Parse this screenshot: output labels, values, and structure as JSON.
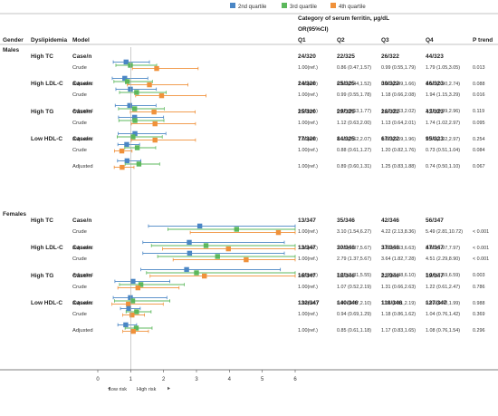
{
  "legend": [
    {
      "label": "2nd quartile",
      "color": "#4a86c5"
    },
    {
      "label": "3rd quartile",
      "color": "#5cb85c"
    },
    {
      "label": "4th quartile",
      "color": "#f0913a"
    }
  ],
  "header": {
    "gender": "Gender",
    "dyslipidemia": "Dyslipidemia",
    "model": "Model",
    "category_line1": "Category of  serum ferritin,  μg/dL",
    "category_line2": "OR(95%CI)",
    "q1": "Q1",
    "q2": "Q2",
    "q3": "Q3",
    "q4": "Q4",
    "ptrend": "P trend"
  },
  "x_axis": {
    "ticks": [
      "0",
      "1",
      "2",
      "3",
      "4",
      "5",
      "6"
    ],
    "low_risk": "Low risk",
    "high_risk": "High risk"
  },
  "chart_data": {
    "type": "forest",
    "xlim": [
      0,
      6
    ],
    "reference_line": 1,
    "series": [
      {
        "name": "2nd quartile",
        "color": "#4a86c5"
      },
      {
        "name": "3rd quartile",
        "color": "#5cb85c"
      },
      {
        "name": "4th quartile",
        "color": "#f0913a"
      }
    ],
    "groups": [
      {
        "gender": "Males",
        "dyslipidemia": "High TC",
        "casen": {
          "label": "Case/n",
          "q1": "24/320",
          "q2": "22/325",
          "q3": "26/322",
          "q4": "44/323"
        },
        "models": [
          {
            "label": "Crude",
            "q1": "1.00(ref.)",
            "q2": "0.86 (0.47,1.57)",
            "q3": "0.99 (0.55,1.79)",
            "q4": "1.79 (1.05,3.05)",
            "p": "0.013",
            "est": [
              [
                0.86,
                0.47,
                1.57
              ],
              [
                0.99,
                0.55,
                1.79
              ],
              [
                1.79,
                1.05,
                3.05
              ]
            ]
          },
          {
            "label": "Adjusted",
            "q1": "1.00(ref.)",
            "q2": "0.82 (0.44,1.52)",
            "q3": "0.90 (0.49,1.66)",
            "q4": "1.57 (0.90,2.74)",
            "p": "0.088",
            "est": [
              [
                0.82,
                0.44,
                1.52
              ],
              [
                0.9,
                0.49,
                1.66
              ],
              [
                1.57,
                0.9,
                2.74
              ]
            ]
          }
        ]
      },
      {
        "gender": "",
        "dyslipidemia": "High LDL-C",
        "casen": {
          "label": "Case/n",
          "q1": "24/320",
          "q2": "25/325",
          "q3": "30/322",
          "q4": "46/323"
        },
        "models": [
          {
            "label": "Crude",
            "q1": "1.00(ref.)",
            "q2": "0.99 (0.55,1.78)",
            "q3": "1.18 (0.66,2.08)",
            "q4": "1.94 (1.15,3.29)",
            "p": "0.016",
            "est": [
              [
                0.99,
                0.55,
                1.78
              ],
              [
                1.18,
                0.66,
                2.08
              ],
              [
                1.94,
                1.15,
                3.29
              ]
            ]
          },
          {
            "label": "Adjusted",
            "q1": "1.00(ref.)",
            "q2": "0.97 (0.53,1.77)",
            "q3": "1.12 (0.63,2.02)",
            "q4": "1.71 (0.99,2.96)",
            "p": "0.119",
            "est": [
              [
                0.97,
                0.53,
                1.77
              ],
              [
                1.12,
                0.63,
                2.02
              ],
              [
                1.71,
                0.99,
                2.96
              ]
            ]
          }
        ]
      },
      {
        "gender": "",
        "dyslipidemia": "High TG",
        "casen": {
          "label": "Case/n",
          "q1": "25/320",
          "q2": "29/325",
          "q3": "28/322",
          "q4": "43/323"
        },
        "models": [
          {
            "label": "Crude",
            "q1": "1.00(ref.)",
            "q2": "1.12 (0.63,2.00)",
            "q3": "1.13 (0.64,2.01)",
            "q4": "1.74 (1.02,2.97)",
            "p": "0.095",
            "est": [
              [
                1.12,
                0.63,
                2.0
              ],
              [
                1.13,
                0.64,
                2.01
              ],
              [
                1.74,
                1.02,
                2.97
              ]
            ]
          },
          {
            "label": "Adjusted",
            "q1": "1.00(ref.)",
            "q2": "1.13 (0.62,2.07)",
            "q3": "1.07 (0.59,1.96)",
            "q4": "1.74 (1.02,2.97)",
            "p": "0.254",
            "est": [
              [
                1.13,
                0.62,
                2.07
              ],
              [
                1.07,
                0.59,
                1.96
              ],
              [
                1.74,
                1.02,
                2.97
              ]
            ]
          }
        ]
      },
      {
        "gender": "",
        "dyslipidemia": "Low HDL-C",
        "casen": {
          "label": "Case/n",
          "q1": "77/320",
          "q2": "84/325",
          "q3": "67/322",
          "q4": "95/323"
        },
        "models": [
          {
            "label": "Crude",
            "q1": "1.00(ref.)",
            "q2": "0.88 (0.61,1.27)",
            "q3": "1.20 (0.82,1.76)",
            "q4": "0.73 (0.51,1.04)",
            "p": "0.084",
            "est": [
              [
                0.88,
                0.61,
                1.27
              ],
              [
                1.2,
                0.82,
                1.76
              ],
              [
                0.73,
                0.51,
                1.04
              ]
            ]
          },
          {
            "label": "Adjusted",
            "q1": "1.00(ref.)",
            "q2": "0.89 (0.60,1.31)",
            "q3": "1.25 (0.83,1.88)",
            "q4": "0.74 (0.50,1.10)",
            "p": "0.067",
            "est": [
              [
                0.89,
                0.6,
                1.31
              ],
              [
                1.25,
                0.83,
                1.88
              ],
              [
                0.74,
                0.5,
                1.1
              ]
            ]
          }
        ]
      },
      {
        "gender": "Females",
        "dyslipidemia": "High TC",
        "casen": {
          "label": "Case/n",
          "q1": "13/347",
          "q2": "35/346",
          "q3": "42/346",
          "q4": "56/347"
        },
        "models": [
          {
            "label": "Crude",
            "q1": "1.00(ref.)",
            "q2": "3.10 (1.54,6.27)",
            "q3": "4.22 (2.13,8.36)",
            "q4": "5.49 (2.81,10.72)",
            "p": "< 0.001",
            "est": [
              [
                3.1,
                1.54,
                6.27
              ],
              [
                4.22,
                2.13,
                8.36
              ],
              [
                5.49,
                2.81,
                10.72
              ]
            ]
          },
          {
            "label": "Adjusted",
            "q1": "1.00(ref.)",
            "q2": "2.78 (1.37,5.67)",
            "q3": "3.29 (1.63,6.63)",
            "q4": "3.97 (1.97,7.97)",
            "p": "< 0.001",
            "est": [
              [
                2.78,
                1.37,
                5.67
              ],
              [
                3.29,
                1.63,
                6.63
              ],
              [
                3.97,
                1.97,
                7.97
              ]
            ]
          }
        ]
      },
      {
        "gender": "",
        "dyslipidemia": "High LDL-C",
        "casen": {
          "label": "Case/n",
          "q1": "13/347",
          "q2": "30/346",
          "q3": "37/346",
          "q4": "47/347"
        },
        "models": [
          {
            "label": "Crude",
            "q1": "1.00(ref.)",
            "q2": "2.79 (1.37,5.67)",
            "q3": "3.64 (1.82,7.28)",
            "q4": "4.51 (2.29,8.90)",
            "p": "< 0.001",
            "est": [
              [
                2.79,
                1.37,
                5.67
              ],
              [
                3.64,
                1.82,
                7.28
              ],
              [
                4.51,
                2.29,
                8.9
              ]
            ]
          },
          {
            "label": "Adjusted",
            "q1": "1.00(ref.)",
            "q2": "2.70 (1.31,5.55)",
            "q3": "3. 00(1.48,6.10)",
            "q4": "3.24 (1.59,6.59)",
            "p": "0.003",
            "est": [
              [
                2.7,
                1.31,
                5.55
              ],
              [
                3.0,
                1.48,
                6.1
              ],
              [
                3.24,
                1.59,
                6.59
              ]
            ]
          }
        ]
      },
      {
        "gender": "",
        "dyslipidemia": "High TG",
        "casen": {
          "label": "Case/n",
          "q1": "16/347",
          "q2": "18/346",
          "q3": "22/346",
          "q4": "19/347"
        },
        "models": [
          {
            "label": "Crude",
            "q1": "1.00(ref.)",
            "q2": "1.07 (0.52,2.19)",
            "q3": "1.31 (0.66,2.63)",
            "q4": "1.22 (0.61,2.47)",
            "p": "0.786",
            "est": [
              [
                1.07,
                0.52,
                2.19
              ],
              [
                1.31,
                0.66,
                2.63
              ],
              [
                1.22,
                0.61,
                2.47
              ]
            ]
          },
          {
            "label": "Adjusted",
            "q1": "1.00(ref.)",
            "q2": "0.99 (0.47,2.10)",
            "q3": "1.06 (0.51,2.19)",
            "q4": "0.93 (0.43,1.99)",
            "p": "0.988",
            "est": [
              [
                0.99,
                0.47,
                2.1
              ],
              [
                1.06,
                0.51,
                2.19
              ],
              [
                0.93,
                0.43,
                1.99
              ]
            ]
          }
        ]
      },
      {
        "gender": "",
        "dyslipidemia": "Low HDL-C",
        "casen": {
          "label": "Case/n",
          "q1": "132/347",
          "q2": "140/346",
          "q3": "118/346",
          "q4": "127/347"
        },
        "models": [
          {
            "label": "Crude",
            "q1": "1.00(ref.)",
            "q2": "0.94 (0.69,1.29)",
            "q3": "1.18 (0.86,1.62)",
            "q4": "1.04 (0.76,1.42)",
            "p": "0.369",
            "est": [
              [
                0.94,
                0.69,
                1.29
              ],
              [
                1.18,
                0.86,
                1.62
              ],
              [
                1.04,
                0.76,
                1.42
              ]
            ]
          },
          {
            "label": "Adjusted",
            "q1": "1.00(ref.)",
            "q2": "0.85 (0.61,1.18)",
            "q3": "1.17 (0.83,1.65)",
            "q4": "1.08 (0.76,1.54)",
            "p": "0.296",
            "est": [
              [
                0.85,
                0.61,
                1.18
              ],
              [
                1.17,
                0.83,
                1.65
              ],
              [
                1.08,
                0.76,
                1.54
              ]
            ]
          }
        ]
      }
    ]
  }
}
